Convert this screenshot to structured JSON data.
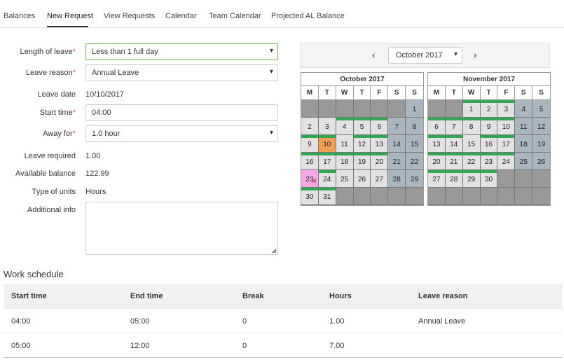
{
  "tabs": [
    {
      "label": "Balances"
    },
    {
      "label": "New Request"
    },
    {
      "label": "View Requests"
    },
    {
      "label": "Calendar"
    },
    {
      "label": "Team Calendar"
    },
    {
      "label": "Projected AL Balance"
    }
  ],
  "active_tab": "New Request",
  "form": {
    "length_of_leave": {
      "label": "Length of leave",
      "value": "Less than 1 full day"
    },
    "leave_reason": {
      "label": "Leave reason",
      "value": "Annual Leave"
    },
    "leave_date": {
      "label": "Leave date",
      "value": "10/10/2017"
    },
    "start_time": {
      "label": "Start time",
      "value": "04:00"
    },
    "away_for": {
      "label": "Away for",
      "value": "1.0 hour"
    },
    "leave_required": {
      "label": "Leave required",
      "value": "1.00"
    },
    "available_balance": {
      "label": "Available balance",
      "value": "122.99"
    },
    "type_of_units": {
      "label": "Type of units",
      "value": "Hours"
    },
    "additional_info": {
      "label": "Additional info",
      "value": ""
    }
  },
  "required_marker": "*",
  "calendar_nav": {
    "prev": "‹",
    "next": "›",
    "month": "October 2017"
  },
  "calendars": [
    {
      "title": "October 2017",
      "dow": [
        "M",
        "T",
        "W",
        "T",
        "F",
        "S",
        "S"
      ],
      "weeks": [
        [
          {
            "d": ""
          },
          {
            "d": ""
          },
          {
            "d": ""
          },
          {
            "d": ""
          },
          {
            "d": ""
          },
          {
            "d": ""
          },
          {
            "d": "1",
            "t": "we"
          }
        ],
        [
          {
            "d": "2",
            "t": "wd"
          },
          {
            "d": "3",
            "t": "wd"
          },
          {
            "d": "4",
            "t": "wd",
            "b": 1
          },
          {
            "d": "5",
            "t": "wd",
            "b": 1
          },
          {
            "d": "6",
            "t": "wd",
            "b": 1
          },
          {
            "d": "7",
            "t": "we"
          },
          {
            "d": "8",
            "t": "we"
          }
        ],
        [
          {
            "d": "9",
            "t": "wd",
            "b": 1
          },
          {
            "d": "10",
            "t": "sel",
            "b": 1
          },
          {
            "d": "11",
            "t": "wd"
          },
          {
            "d": "12",
            "t": "wd",
            "b": 1
          },
          {
            "d": "13",
            "t": "wd",
            "b": 1
          },
          {
            "d": "14",
            "t": "we"
          },
          {
            "d": "15",
            "t": "we"
          }
        ],
        [
          {
            "d": "16",
            "t": "wd",
            "b": 1
          },
          {
            "d": "17",
            "t": "wd",
            "b": 1
          },
          {
            "d": "18",
            "t": "wd",
            "b": 1
          },
          {
            "d": "19",
            "t": "wd",
            "b": 1
          },
          {
            "d": "20",
            "t": "wd",
            "b": 1
          },
          {
            "d": "21",
            "t": "we"
          },
          {
            "d": "22",
            "t": "we"
          }
        ],
        [
          {
            "d": "23",
            "t": "pink",
            "m": 1
          },
          {
            "d": "24",
            "t": "wd",
            "b": 1
          },
          {
            "d": "25",
            "t": "wd"
          },
          {
            "d": "26",
            "t": "wd"
          },
          {
            "d": "27",
            "t": "wd"
          },
          {
            "d": "28",
            "t": "we"
          },
          {
            "d": "29",
            "t": "we"
          }
        ],
        [
          {
            "d": "30",
            "t": "wd",
            "b": 1
          },
          {
            "d": "31",
            "t": "wd",
            "b": 1
          },
          {
            "d": ""
          },
          {
            "d": ""
          },
          {
            "d": ""
          },
          {
            "d": ""
          },
          {
            "d": ""
          }
        ]
      ]
    },
    {
      "title": "November 2017",
      "dow": [
        "M",
        "T",
        "W",
        "T",
        "F",
        "S",
        "S"
      ],
      "weeks": [
        [
          {
            "d": ""
          },
          {
            "d": ""
          },
          {
            "d": "1",
            "t": "wd",
            "b": 1
          },
          {
            "d": "2",
            "t": "wd",
            "b": 1
          },
          {
            "d": "3",
            "t": "wd",
            "b": 1
          },
          {
            "d": "4",
            "t": "we"
          },
          {
            "d": "5",
            "t": "we"
          }
        ],
        [
          {
            "d": "6",
            "t": "wd",
            "b": 1
          },
          {
            "d": "7",
            "t": "wd",
            "b": 1
          },
          {
            "d": "8",
            "t": "wd",
            "b": 1
          },
          {
            "d": "9",
            "t": "wd",
            "b": 1
          },
          {
            "d": "10",
            "t": "wd",
            "b": 1
          },
          {
            "d": "11",
            "t": "we"
          },
          {
            "d": "12",
            "t": "we"
          }
        ],
        [
          {
            "d": "13",
            "t": "wd",
            "b": 1
          },
          {
            "d": "14",
            "t": "wd",
            "b": 1
          },
          {
            "d": "15",
            "t": "wd"
          },
          {
            "d": "16",
            "t": "wd",
            "b": 1
          },
          {
            "d": "17",
            "t": "wd",
            "b": 1
          },
          {
            "d": "18",
            "t": "we"
          },
          {
            "d": "19",
            "t": "we"
          }
        ],
        [
          {
            "d": "20",
            "t": "wd",
            "b": 1
          },
          {
            "d": "21",
            "t": "wd",
            "b": 1
          },
          {
            "d": "22",
            "t": "wd",
            "b": 1
          },
          {
            "d": "23",
            "t": "wd",
            "b": 1
          },
          {
            "d": "24",
            "t": "wd",
            "b": 1
          },
          {
            "d": "25",
            "t": "we"
          },
          {
            "d": "26",
            "t": "we"
          }
        ],
        [
          {
            "d": "27",
            "t": "wd",
            "b": 1
          },
          {
            "d": "28",
            "t": "wd",
            "b": 1
          },
          {
            "d": "29",
            "t": "wd",
            "b": 1
          },
          {
            "d": "30",
            "t": "wd",
            "b": 1
          },
          {
            "d": ""
          },
          {
            "d": ""
          },
          {
            "d": ""
          }
        ],
        [
          {
            "d": ""
          },
          {
            "d": ""
          },
          {
            "d": ""
          },
          {
            "d": ""
          },
          {
            "d": ""
          },
          {
            "d": ""
          },
          {
            "d": ""
          }
        ]
      ]
    }
  ],
  "work_schedule": {
    "title": "Work schedule",
    "headers": [
      "Start time",
      "End time",
      "Break",
      "Hours",
      "Leave reason"
    ],
    "rows": [
      [
        "04:00",
        "05:00",
        "0",
        "1.00",
        "Annual Leave"
      ],
      [
        "05:00",
        "12:00",
        "0",
        "7.00",
        ""
      ]
    ]
  },
  "colors": {
    "working_day_bar": "#2fa84f",
    "selected_day": "#f0a050",
    "weekend": "#a9b5bf",
    "holiday": "#f5a7e6"
  }
}
